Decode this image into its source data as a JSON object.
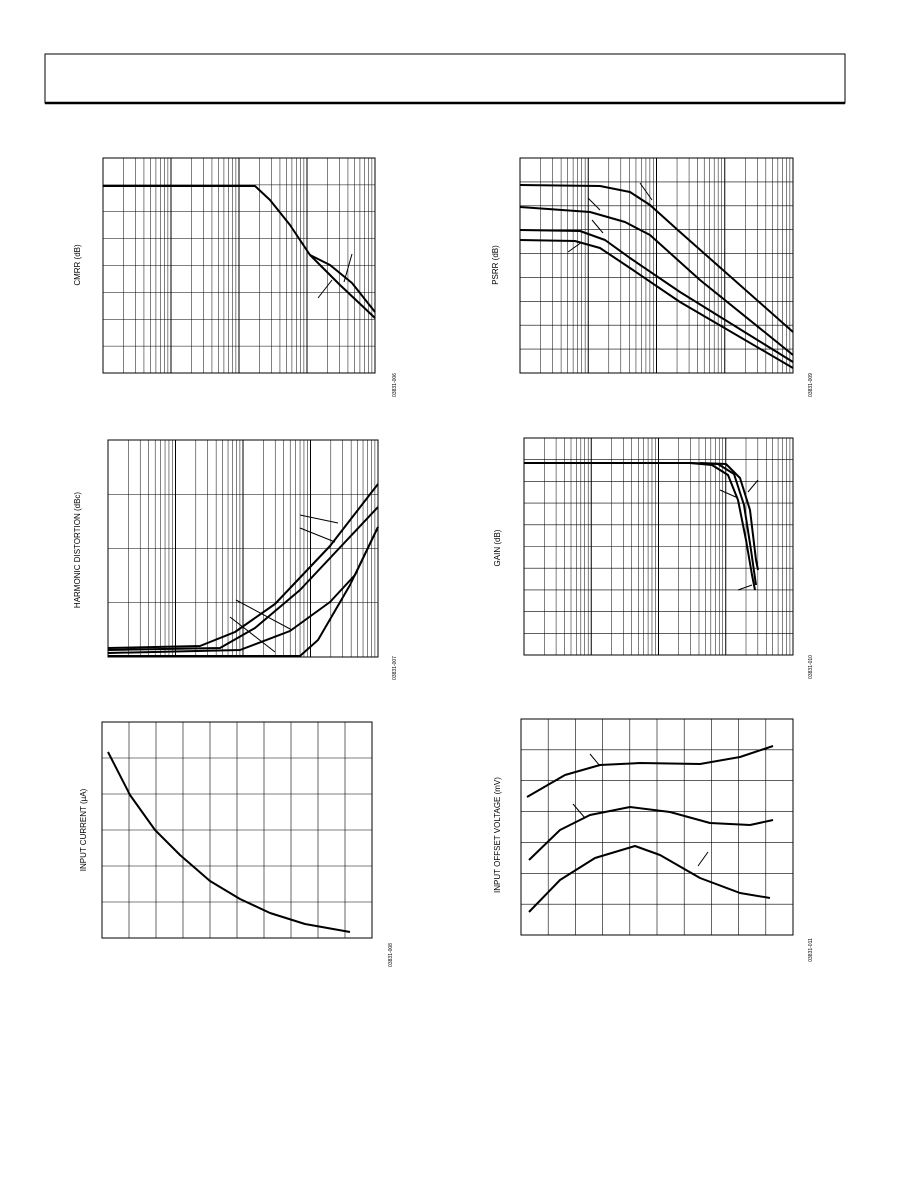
{
  "charts": [
    {
      "y_label": "CMRR (dB)",
      "figure_id": "03831-006"
    },
    {
      "y_label": "PSRR (dB)",
      "figure_id": "03831-009"
    },
    {
      "y_label": "HARMONIC DISTORTION (dBc)",
      "figure_id": "03831-007"
    },
    {
      "y_label": "GAIN (dB)",
      "figure_id": "03831-010"
    },
    {
      "y_label": "INPUT CURRENT (µA)",
      "figure_id": "03831-008"
    },
    {
      "y_label": "INPUT OFFSET VOLTAGE (mV)",
      "figure_id": "03831-011"
    }
  ]
}
